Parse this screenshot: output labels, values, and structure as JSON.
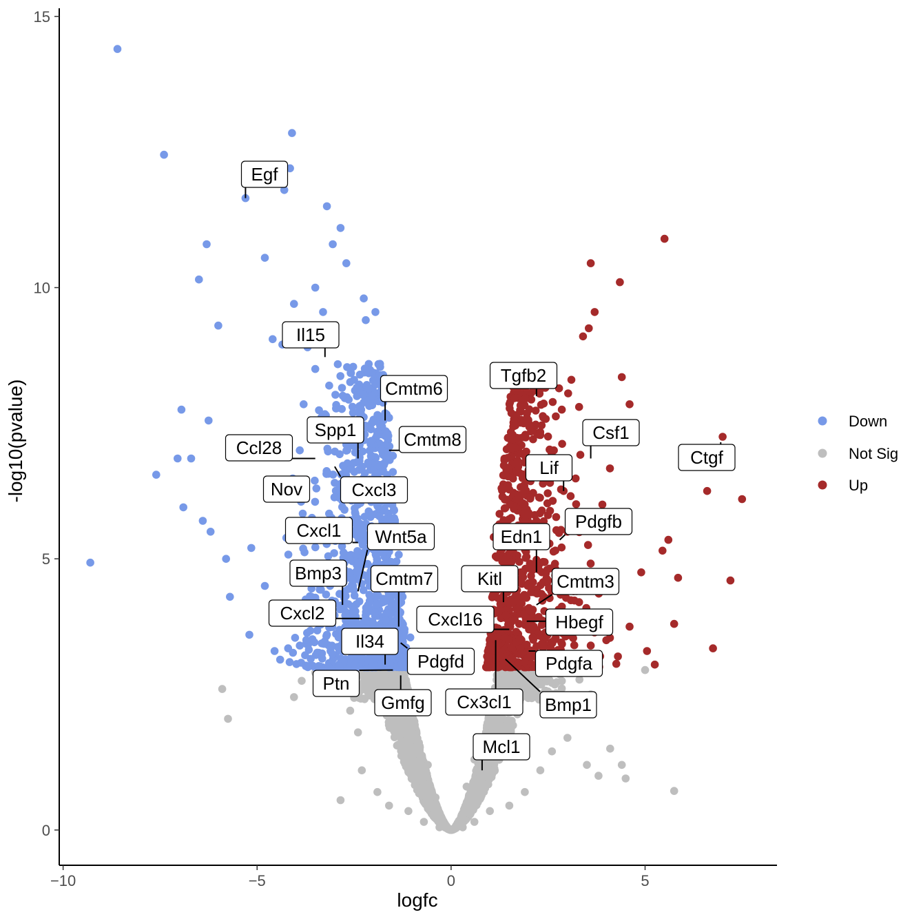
{
  "chart_data": {
    "type": "scatter",
    "title": "",
    "xlabel": "logfc",
    "ylabel": "-log10(pvalue)",
    "xlim": [
      -10.1,
      8.4
    ],
    "ylim": [
      -0.65,
      15.15
    ],
    "x_ticks": [
      -10,
      -5,
      0,
      5
    ],
    "y_ticks": [
      0,
      5,
      10,
      15
    ],
    "x_tick_labels": [
      "−10",
      "−5",
      "0",
      "5"
    ],
    "y_tick_labels": [
      "0",
      "5",
      "10",
      "15"
    ],
    "grid": false,
    "legend": {
      "placement": "right",
      "entries": [
        {
          "key": "Down",
          "label": "Down",
          "color": "#7799e8"
        },
        {
          "key": "NotSig",
          "label": "Not Sig",
          "color": "#bebebe"
        },
        {
          "key": "Up",
          "label": "Up",
          "color": "#a52a2a"
        }
      ]
    },
    "colors": {
      "Down": "#7799e8",
      "NotSig": "#bebebe",
      "Up": "#a52a2a"
    },
    "series": [
      {
        "key": "Down",
        "points": [
          [
            -9.3,
            4.93
          ],
          [
            -8.6,
            14.4
          ],
          [
            -7.4,
            12.45
          ],
          [
            -7.6,
            6.55
          ],
          [
            -7.05,
            6.85
          ],
          [
            -6.95,
            7.75
          ],
          [
            -6.7,
            6.85
          ],
          [
            -6.9,
            5.95
          ],
          [
            -6.5,
            10.15
          ],
          [
            -6.3,
            10.8
          ],
          [
            -6.25,
            7.55
          ],
          [
            -6.0,
            9.3
          ],
          [
            -5.3,
            11.65
          ],
          [
            -4.8,
            10.55
          ],
          [
            -4.3,
            11.8
          ],
          [
            -4.1,
            12.85
          ],
          [
            -4.15,
            12.2
          ],
          [
            -4.05,
            9.7
          ],
          [
            -3.7,
            8.9
          ],
          [
            -3.5,
            10.0
          ],
          [
            -3.3,
            9.55
          ],
          [
            -3.2,
            11.5
          ],
          [
            -2.85,
            11.1
          ],
          [
            -3.05,
            10.8
          ],
          [
            -2.7,
            10.45
          ],
          [
            -3.5,
            8.5
          ],
          [
            -3.8,
            7.85
          ],
          [
            -3.9,
            7.0
          ],
          [
            -3.4,
            7.3
          ],
          [
            -6.2,
            5.5
          ],
          [
            -6.4,
            5.7
          ],
          [
            -5.7,
            4.3
          ],
          [
            -5.8,
            5.0
          ],
          [
            -5.15,
            5.2
          ],
          [
            -4.8,
            4.5
          ],
          [
            -5.2,
            3.6
          ],
          [
            -4.55,
            3.3
          ],
          [
            -4.2,
            3.35
          ],
          [
            -3.9,
            3.4
          ],
          [
            -3.2,
            3.6
          ],
          [
            -2.9,
            3.55
          ],
          [
            -2.4,
            3.8
          ],
          [
            -1.95,
            9.55
          ],
          [
            -1.8,
            8.1
          ],
          [
            -1.6,
            7.6
          ],
          [
            -1.5,
            6.9
          ],
          [
            -1.5,
            6.6
          ],
          [
            -1.4,
            5.3
          ],
          [
            -1.25,
            4.3
          ],
          [
            -1.2,
            3.7
          ],
          [
            -1.05,
            3.55
          ],
          [
            -2.25,
            9.8
          ],
          [
            -2.2,
            9.4
          ],
          [
            -2.5,
            8.3
          ],
          [
            -2.9,
            7.2
          ],
          [
            -3.0,
            6.4
          ],
          [
            -2.4,
            6.0
          ],
          [
            -2.05,
            5.6
          ],
          [
            -1.75,
            5.1
          ],
          [
            -2.85,
            4.9
          ],
          [
            -3.6,
            4.3
          ],
          [
            -3.35,
            4.7
          ],
          [
            -4.6,
            9.05
          ],
          [
            -4.35,
            8.95
          ]
        ]
      },
      {
        "key": "NotSig",
        "points": [
          [
            -5.9,
            2.6
          ],
          [
            -5.75,
            2.05
          ],
          [
            -4.05,
            2.45
          ],
          [
            -3.85,
            2.75
          ],
          [
            -3.5,
            2.9
          ],
          [
            -2.9,
            2.55
          ],
          [
            -2.6,
            2.2
          ],
          [
            -2.4,
            1.8
          ],
          [
            -2.85,
            0.55
          ],
          [
            -2.3,
            1.1
          ],
          [
            -1.9,
            0.7
          ],
          [
            -1.6,
            0.45
          ],
          [
            -1.1,
            0.35
          ],
          [
            -0.7,
            0.15
          ],
          [
            -0.3,
            0.05
          ],
          [
            0.0,
            0.0
          ],
          [
            0.3,
            0.05
          ],
          [
            0.6,
            0.15
          ],
          [
            1.0,
            0.35
          ],
          [
            1.5,
            0.45
          ],
          [
            1.9,
            0.7
          ],
          [
            2.3,
            1.1
          ],
          [
            2.6,
            1.45
          ],
          [
            3.0,
            1.7
          ],
          [
            3.5,
            1.2
          ],
          [
            3.8,
            1.0
          ],
          [
            4.1,
            1.5
          ],
          [
            4.4,
            1.2
          ],
          [
            4.5,
            0.95
          ],
          [
            5.75,
            0.72
          ],
          [
            5.0,
            2.95
          ],
          [
            3.6,
            2.5
          ],
          [
            1.2,
            2.2
          ],
          [
            0.9,
            1.8
          ],
          [
            0.6,
            1.3
          ],
          [
            -0.6,
            1.2
          ],
          [
            -1.0,
            1.9
          ],
          [
            -1.5,
            2.6
          ],
          [
            0.4,
            0.8
          ],
          [
            -0.4,
            0.6
          ]
        ]
      },
      {
        "key": "Up",
        "points": [
          [
            5.5,
            10.9
          ],
          [
            4.35,
            10.1
          ],
          [
            3.6,
            10.45
          ],
          [
            3.7,
            9.55
          ],
          [
            3.4,
            9.1
          ],
          [
            3.55,
            9.25
          ],
          [
            4.4,
            8.35
          ],
          [
            3.1,
            8.3
          ],
          [
            2.25,
            8.55
          ],
          [
            2.4,
            8.55
          ],
          [
            7.0,
            7.25
          ],
          [
            7.5,
            6.1
          ],
          [
            6.6,
            6.25
          ],
          [
            5.6,
            5.35
          ],
          [
            5.45,
            5.15
          ],
          [
            5.85,
            4.65
          ],
          [
            5.75,
            3.8
          ],
          [
            7.2,
            4.6
          ],
          [
            6.75,
            3.35
          ],
          [
            5.25,
            3.05
          ],
          [
            5.05,
            3.3
          ],
          [
            4.9,
            4.75
          ],
          [
            4.6,
            7.85
          ],
          [
            4.3,
            5.6
          ],
          [
            3.9,
            6.0
          ],
          [
            3.3,
            7.8
          ],
          [
            2.9,
            6.25
          ],
          [
            2.65,
            7.0
          ],
          [
            2.0,
            7.5
          ],
          [
            1.6,
            7.2
          ],
          [
            1.9,
            7.95
          ],
          [
            2.2,
            5.7
          ],
          [
            1.3,
            6.3
          ],
          [
            1.1,
            5.4
          ],
          [
            1.4,
            5.0
          ],
          [
            1.6,
            4.2
          ],
          [
            2.5,
            4.6
          ],
          [
            2.9,
            3.9
          ],
          [
            3.6,
            3.4
          ],
          [
            4.0,
            3.5
          ],
          [
            4.3,
            3.2
          ],
          [
            4.6,
            3.75
          ],
          [
            1.2,
            3.7
          ],
          [
            1.0,
            3.4
          ],
          [
            0.95,
            3.1
          ],
          [
            1.8,
            3.25
          ],
          [
            2.1,
            3.55
          ],
          [
            3.3,
            4.2
          ],
          [
            3.0,
            5.5
          ],
          [
            2.55,
            6.4
          ]
        ]
      }
    ],
    "annotations": [
      {
        "label": "Egf",
        "x": -5.3,
        "y": 11.65
      },
      {
        "label": "Il15",
        "x": -3.25,
        "y": 8.72
      },
      {
        "label": "Cmtm6",
        "x": -1.7,
        "y": 7.55
      },
      {
        "label": "Spp1",
        "x": -2.4,
        "y": 6.85
      },
      {
        "label": "Cmtm8",
        "x": -1.6,
        "y": 7.0
      },
      {
        "label": "Ccl28",
        "x": -3.5,
        "y": 6.85
      },
      {
        "label": "Nov",
        "x": -3.7,
        "y": 6.4
      },
      {
        "label": "Cxcl3",
        "x": -3.0,
        "y": 6.7
      },
      {
        "label": "Cxcl1",
        "x": -2.4,
        "y": 5.3
      },
      {
        "label": "Wnt5a",
        "x": -2.4,
        "y": 4.4
      },
      {
        "label": "Bmp3",
        "x": -2.8,
        "y": 4.15
      },
      {
        "label": "Cmtm7",
        "x": -1.35,
        "y": 3.75
      },
      {
        "label": "Cxcl2",
        "x": -2.3,
        "y": 3.9
      },
      {
        "label": "Il34",
        "x": -1.7,
        "y": 3.05
      },
      {
        "label": "Pdgfd",
        "x": -1.3,
        "y": 3.45
      },
      {
        "label": "Ptn",
        "x": -1.5,
        "y": 2.95
      },
      {
        "label": "Gmfg",
        "x": -1.3,
        "y": 2.85
      },
      {
        "label": "Tgfb2",
        "x": 2.2,
        "y": 8.0
      },
      {
        "label": "Csf1",
        "x": 3.6,
        "y": 6.85
      },
      {
        "label": "Ctgf",
        "x": 6.95,
        "y": 7.15
      },
      {
        "label": "Lif",
        "x": 2.9,
        "y": 6.25
      },
      {
        "label": "Pdgfb",
        "x": 2.8,
        "y": 5.35
      },
      {
        "label": "Edn1",
        "x": 2.2,
        "y": 4.75
      },
      {
        "label": "Kitl",
        "x": 1.35,
        "y": 4.2
      },
      {
        "label": "Cmtm3",
        "x": 2.2,
        "y": 4.15
      },
      {
        "label": "Cxcl16",
        "x": 1.5,
        "y": 3.7
      },
      {
        "label": "Hbegf",
        "x": 1.95,
        "y": 3.85
      },
      {
        "label": "Pdgfa",
        "x": 2.0,
        "y": 3.3
      },
      {
        "label": "Cx3cl1",
        "x": 1.15,
        "y": 3.5
      },
      {
        "label": "Bmp1",
        "x": 1.4,
        "y": 3.15
      },
      {
        "label": "Mcl1",
        "x": 0.8,
        "y": 1.1
      }
    ]
  }
}
